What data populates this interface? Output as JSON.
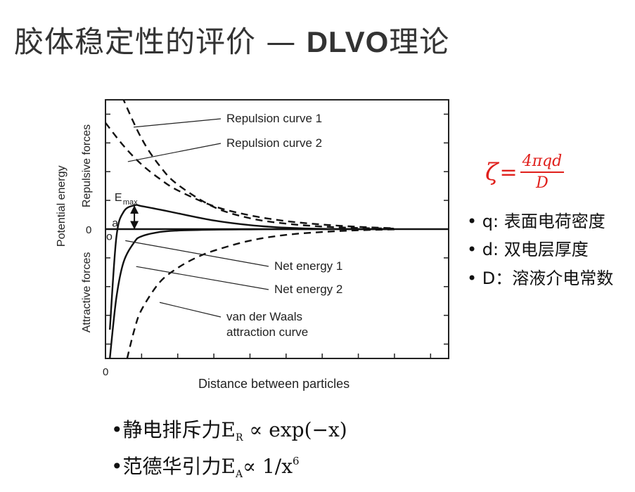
{
  "slide": {
    "title_cn": "胶体稳定性的评价 — ",
    "title_latin": "DLVO",
    "title_tail": "理论"
  },
  "chart_data": {
    "type": "line",
    "title": "",
    "xlabel": "Distance between particles",
    "ylabel": "Potential energy",
    "ylabel_upper": "Repulsive forces",
    "ylabel_lower": "Attractive forces",
    "x_origin_label": "0",
    "y_zero_label": "0",
    "series": [
      {
        "name": "Repulsion curve 1",
        "style": "dashed",
        "x": [
          0.35,
          0.5,
          1,
          1.5,
          2,
          3,
          4,
          5,
          6,
          7,
          8
        ],
        "y": [
          5.0,
          4.5,
          3.15,
          2.2,
          1.55,
          0.77,
          0.38,
          0.19,
          0.09,
          0.04,
          0.02
        ]
      },
      {
        "name": "Repulsion curve 2",
        "style": "dashed",
        "x": [
          0,
          0.5,
          1,
          1.5,
          2,
          3,
          4,
          5,
          6,
          7,
          8
        ],
        "y": [
          3.7,
          2.9,
          2.25,
          1.75,
          1.35,
          0.8,
          0.48,
          0.28,
          0.16,
          0.08,
          0.03
        ]
      },
      {
        "name": "Net energy 1",
        "style": "solid",
        "x": [
          0.12,
          0.3,
          0.5,
          0.8,
          1.0,
          1.5,
          2,
          3,
          4,
          5,
          6,
          7,
          8
        ],
        "y": [
          -3.5,
          -0.3,
          0.6,
          0.83,
          0.8,
          0.68,
          0.55,
          0.3,
          0.14,
          0.05,
          0.01,
          0.0,
          0.0
        ]
      },
      {
        "name": "Net energy 2",
        "style": "solid",
        "x": [
          0.12,
          0.3,
          0.5,
          0.8,
          1.0,
          1.5,
          2,
          3,
          4,
          5,
          6,
          7,
          8
        ],
        "y": [
          -4.5,
          -2.4,
          -1.15,
          -0.45,
          -0.25,
          -0.1,
          -0.05,
          -0.02,
          -0.01,
          0.0,
          0.0,
          0.0,
          0.0
        ]
      },
      {
        "name": "van der Waals attraction curve",
        "style": "dashed",
        "x": [
          0.6,
          0.8,
          1,
          1.5,
          2,
          2.5,
          3,
          4,
          5,
          6,
          7,
          8
        ],
        "y": [
          -4.5,
          -3.5,
          -2.8,
          -1.85,
          -1.35,
          -1.0,
          -0.75,
          -0.4,
          -0.2,
          -0.1,
          -0.04,
          -0.01
        ]
      }
    ],
    "annotations": {
      "emax_main": "E",
      "emax_sub": "max",
      "point_a": "a",
      "point_o": "o"
    },
    "xlim": [
      0,
      9.5
    ],
    "ylim": [
      -4.5,
      4.5
    ],
    "grid": false
  },
  "zeta": {
    "lhs": "ζ",
    "eq": "=",
    "numerator": "4πqd",
    "denominator": "D"
  },
  "definitions": [
    "• q: 表面电荷密度",
    "• d: 双电层厚度",
    "• D：溶液介电常数"
  ],
  "formulas": {
    "f1": {
      "bullet": "•",
      "label": "静电排斥力",
      "E": "E",
      "sub": "R",
      "rhs": " ∝ exp(−x)"
    },
    "f2": {
      "bullet": "•",
      "label": "范德华引力",
      "E": "E",
      "sub": "A",
      "rhs": "∝ 1/x",
      "sup": "6"
    }
  }
}
